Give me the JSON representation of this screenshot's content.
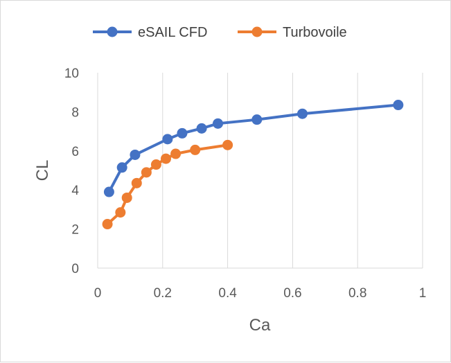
{
  "chart_data": {
    "type": "line",
    "title": "",
    "xlabel": "Ca",
    "ylabel": "CL",
    "xlim": [
      0,
      1
    ],
    "ylim": [
      0,
      10
    ],
    "xticks": [
      0,
      0.2,
      0.4,
      0.6,
      0.8,
      1
    ],
    "yticks": [
      0,
      2,
      4,
      6,
      8,
      10
    ],
    "xtick_labels": [
      "0",
      "0.2",
      "0.4",
      "0.6",
      "0.8",
      "1"
    ],
    "ytick_labels": [
      "0",
      "2",
      "4",
      "6",
      "8",
      "10"
    ],
    "grid": "vertical",
    "legend_position": "top",
    "series": [
      {
        "name": "eSAIL CFD",
        "color": "#4472c4",
        "x": [
          0.035,
          0.075,
          0.115,
          0.215,
          0.26,
          0.32,
          0.37,
          0.49,
          0.63,
          0.925
        ],
        "y": [
          3.9,
          5.15,
          5.8,
          6.6,
          6.9,
          7.15,
          7.4,
          7.6,
          7.9,
          8.35
        ]
      },
      {
        "name": "Turbovoile",
        "color": "#ed7d31",
        "x": [
          0.03,
          0.07,
          0.09,
          0.12,
          0.15,
          0.18,
          0.21,
          0.24,
          0.3,
          0.4
        ],
        "y": [
          2.25,
          2.85,
          3.6,
          4.35,
          4.9,
          5.3,
          5.6,
          5.85,
          6.05,
          6.3
        ]
      }
    ]
  }
}
